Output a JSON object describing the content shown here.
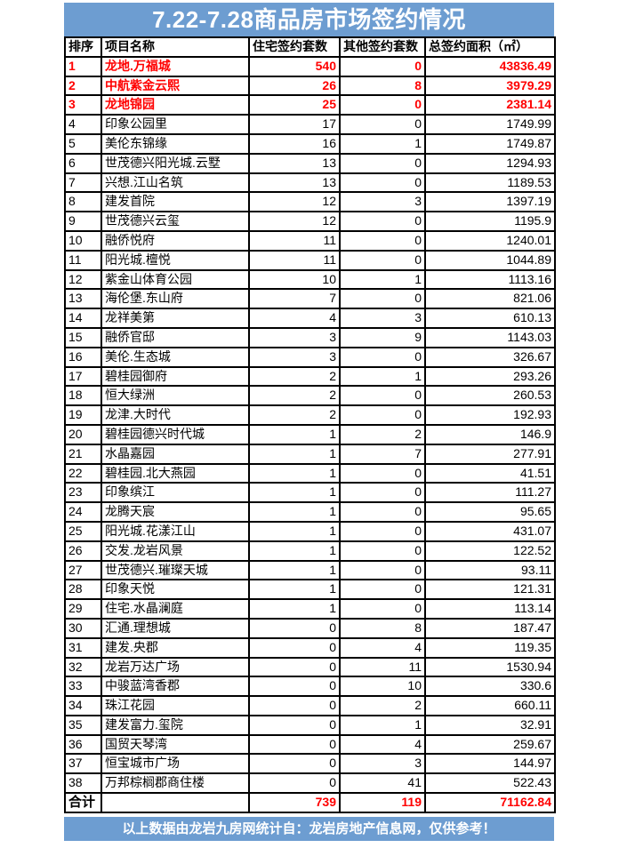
{
  "title": "7.22-7.28商品房市场签约情况",
  "colors": {
    "banner_blue": "#6D9DD1",
    "highlight_red": "#FF0000",
    "grid_black": "#000000"
  },
  "table": {
    "headers": {
      "rank": "排序",
      "name": "项目名称",
      "residential": "住宅签约套数",
      "other": "其他签约套数",
      "area": "总签约面积（㎡）"
    },
    "rows": [
      {
        "rank": "1",
        "name": "龙地.万福城",
        "residential": "540",
        "other": "0",
        "area": "43836.49",
        "highlight": true
      },
      {
        "rank": "2",
        "name": "中航紫金云熙",
        "residential": "26",
        "other": "8",
        "area": "3979.29",
        "highlight": true
      },
      {
        "rank": "3",
        "name": "龙地锦园",
        "residential": "25",
        "other": "0",
        "area": "2381.14",
        "highlight": true
      },
      {
        "rank": "4",
        "name": "印象公园里",
        "residential": "17",
        "other": "0",
        "area": "1749.99",
        "highlight": false
      },
      {
        "rank": "5",
        "name": "美伦东锦缘",
        "residential": "16",
        "other": "1",
        "area": "1749.87",
        "highlight": false
      },
      {
        "rank": "6",
        "name": "世茂德兴阳光城.云墅",
        "residential": "13",
        "other": "0",
        "area": "1294.93",
        "highlight": false
      },
      {
        "rank": "7",
        "name": "兴想.江山名筑",
        "residential": "13",
        "other": "0",
        "area": "1189.53",
        "highlight": false
      },
      {
        "rank": "8",
        "name": "建发首院",
        "residential": "12",
        "other": "3",
        "area": "1397.19",
        "highlight": false
      },
      {
        "rank": "9",
        "name": "世茂德兴云玺",
        "residential": "12",
        "other": "0",
        "area": "1195.9",
        "highlight": false
      },
      {
        "rank": "10",
        "name": "融侨悦府",
        "residential": "11",
        "other": "0",
        "area": "1240.01",
        "highlight": false
      },
      {
        "rank": "11",
        "name": "阳光城.檀悦",
        "residential": "11",
        "other": "0",
        "area": "1044.89",
        "highlight": false
      },
      {
        "rank": "12",
        "name": "紫金山体育公园",
        "residential": "10",
        "other": "1",
        "area": "1113.16",
        "highlight": false
      },
      {
        "rank": "13",
        "name": "海伦堡.东山府",
        "residential": "7",
        "other": "0",
        "area": "821.06",
        "highlight": false
      },
      {
        "rank": "14",
        "name": "龙祥美第",
        "residential": "4",
        "other": "3",
        "area": "610.13",
        "highlight": false
      },
      {
        "rank": "15",
        "name": "融侨官邸",
        "residential": "3",
        "other": "9",
        "area": "1143.03",
        "highlight": false
      },
      {
        "rank": "16",
        "name": "美伦.生态城",
        "residential": "3",
        "other": "0",
        "area": "326.67",
        "highlight": false
      },
      {
        "rank": "17",
        "name": "碧桂园御府",
        "residential": "2",
        "other": "1",
        "area": "293.26",
        "highlight": false
      },
      {
        "rank": "18",
        "name": "恒大绿洲",
        "residential": "2",
        "other": "0",
        "area": "260.53",
        "highlight": false
      },
      {
        "rank": "19",
        "name": "龙津.大时代",
        "residential": "2",
        "other": "0",
        "area": "192.93",
        "highlight": false
      },
      {
        "rank": "20",
        "name": "碧桂园德兴时代城",
        "residential": "1",
        "other": "2",
        "area": "146.9",
        "highlight": false
      },
      {
        "rank": "21",
        "name": "水晶嘉园",
        "residential": "1",
        "other": "7",
        "area": "277.91",
        "highlight": false
      },
      {
        "rank": "22",
        "name": "碧桂园.北大燕园",
        "residential": "1",
        "other": "0",
        "area": "41.51",
        "highlight": false
      },
      {
        "rank": "23",
        "name": "印象缤江",
        "residential": "1",
        "other": "0",
        "area": "111.27",
        "highlight": false
      },
      {
        "rank": "24",
        "name": "龙腾天宸",
        "residential": "1",
        "other": "0",
        "area": "95.65",
        "highlight": false
      },
      {
        "rank": "25",
        "name": "阳光城.花漾江山",
        "residential": "1",
        "other": "0",
        "area": "431.07",
        "highlight": false
      },
      {
        "rank": "26",
        "name": "交发.龙岩风景",
        "residential": "1",
        "other": "0",
        "area": "122.52",
        "highlight": false
      },
      {
        "rank": "27",
        "name": "世茂德兴.璀璨天城",
        "residential": "1",
        "other": "0",
        "area": "93.11",
        "highlight": false
      },
      {
        "rank": "28",
        "name": "印象天悦",
        "residential": "1",
        "other": "0",
        "area": "121.31",
        "highlight": false
      },
      {
        "rank": "29",
        "name": "住宅.水晶澜庭",
        "residential": "1",
        "other": "0",
        "area": "113.14",
        "highlight": false
      },
      {
        "rank": "30",
        "name": "汇通.理想城",
        "residential": "0",
        "other": "8",
        "area": "187.47",
        "highlight": false
      },
      {
        "rank": "31",
        "name": "建发.央郡",
        "residential": "0",
        "other": "4",
        "area": "119.35",
        "highlight": false
      },
      {
        "rank": "32",
        "name": "龙岩万达广场",
        "residential": "0",
        "other": "11",
        "area": "1530.94",
        "highlight": false
      },
      {
        "rank": "33",
        "name": "中骏蓝湾香郡",
        "residential": "0",
        "other": "10",
        "area": "330.6",
        "highlight": false
      },
      {
        "rank": "34",
        "name": "珠江花园",
        "residential": "0",
        "other": "2",
        "area": "660.11",
        "highlight": false
      },
      {
        "rank": "35",
        "name": "建发富力.玺院",
        "residential": "0",
        "other": "1",
        "area": "32.91",
        "highlight": false
      },
      {
        "rank": "36",
        "name": "国贸天琴湾",
        "residential": "0",
        "other": "4",
        "area": "259.67",
        "highlight": false
      },
      {
        "rank": "37",
        "name": "恒宝城市广场",
        "residential": "0",
        "other": "3",
        "area": "144.97",
        "highlight": false
      },
      {
        "rank": "38",
        "name": "万邦棕榈郡商住楼",
        "residential": "0",
        "other": "41",
        "area": "522.43",
        "highlight": false
      }
    ],
    "total": {
      "label": "合计",
      "name": "",
      "residential": "739",
      "other": "119",
      "area": "71162.84"
    }
  },
  "footer": {
    "note": "以上数据由龙岩九房网统计自：龙岩房地产信息网，仅供参考！"
  }
}
